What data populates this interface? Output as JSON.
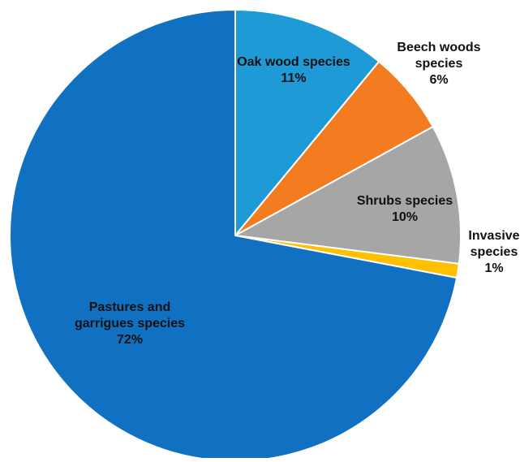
{
  "chart_data": {
    "type": "pie",
    "start_angle_deg": 0,
    "direction": "clockwise",
    "slices": [
      {
        "label_lines": [
          "Oak wood species",
          "11%"
        ],
        "value": 11,
        "color": "#1e9ad6"
      },
      {
        "label_lines": [
          "Beech woods",
          "species",
          "6%"
        ],
        "value": 6,
        "color": "#f47c20"
      },
      {
        "label_lines": [
          "Shrubs species",
          "10%"
        ],
        "value": 10,
        "color": "#a6a6a6"
      },
      {
        "label_lines": [
          "Invasive",
          "species",
          "1%"
        ],
        "value": 1,
        "color": "#ffc000"
      },
      {
        "label_lines": [
          "Pastures and",
          "garrigues species",
          "72%"
        ],
        "value": 72,
        "color": "#1071c2"
      }
    ]
  }
}
